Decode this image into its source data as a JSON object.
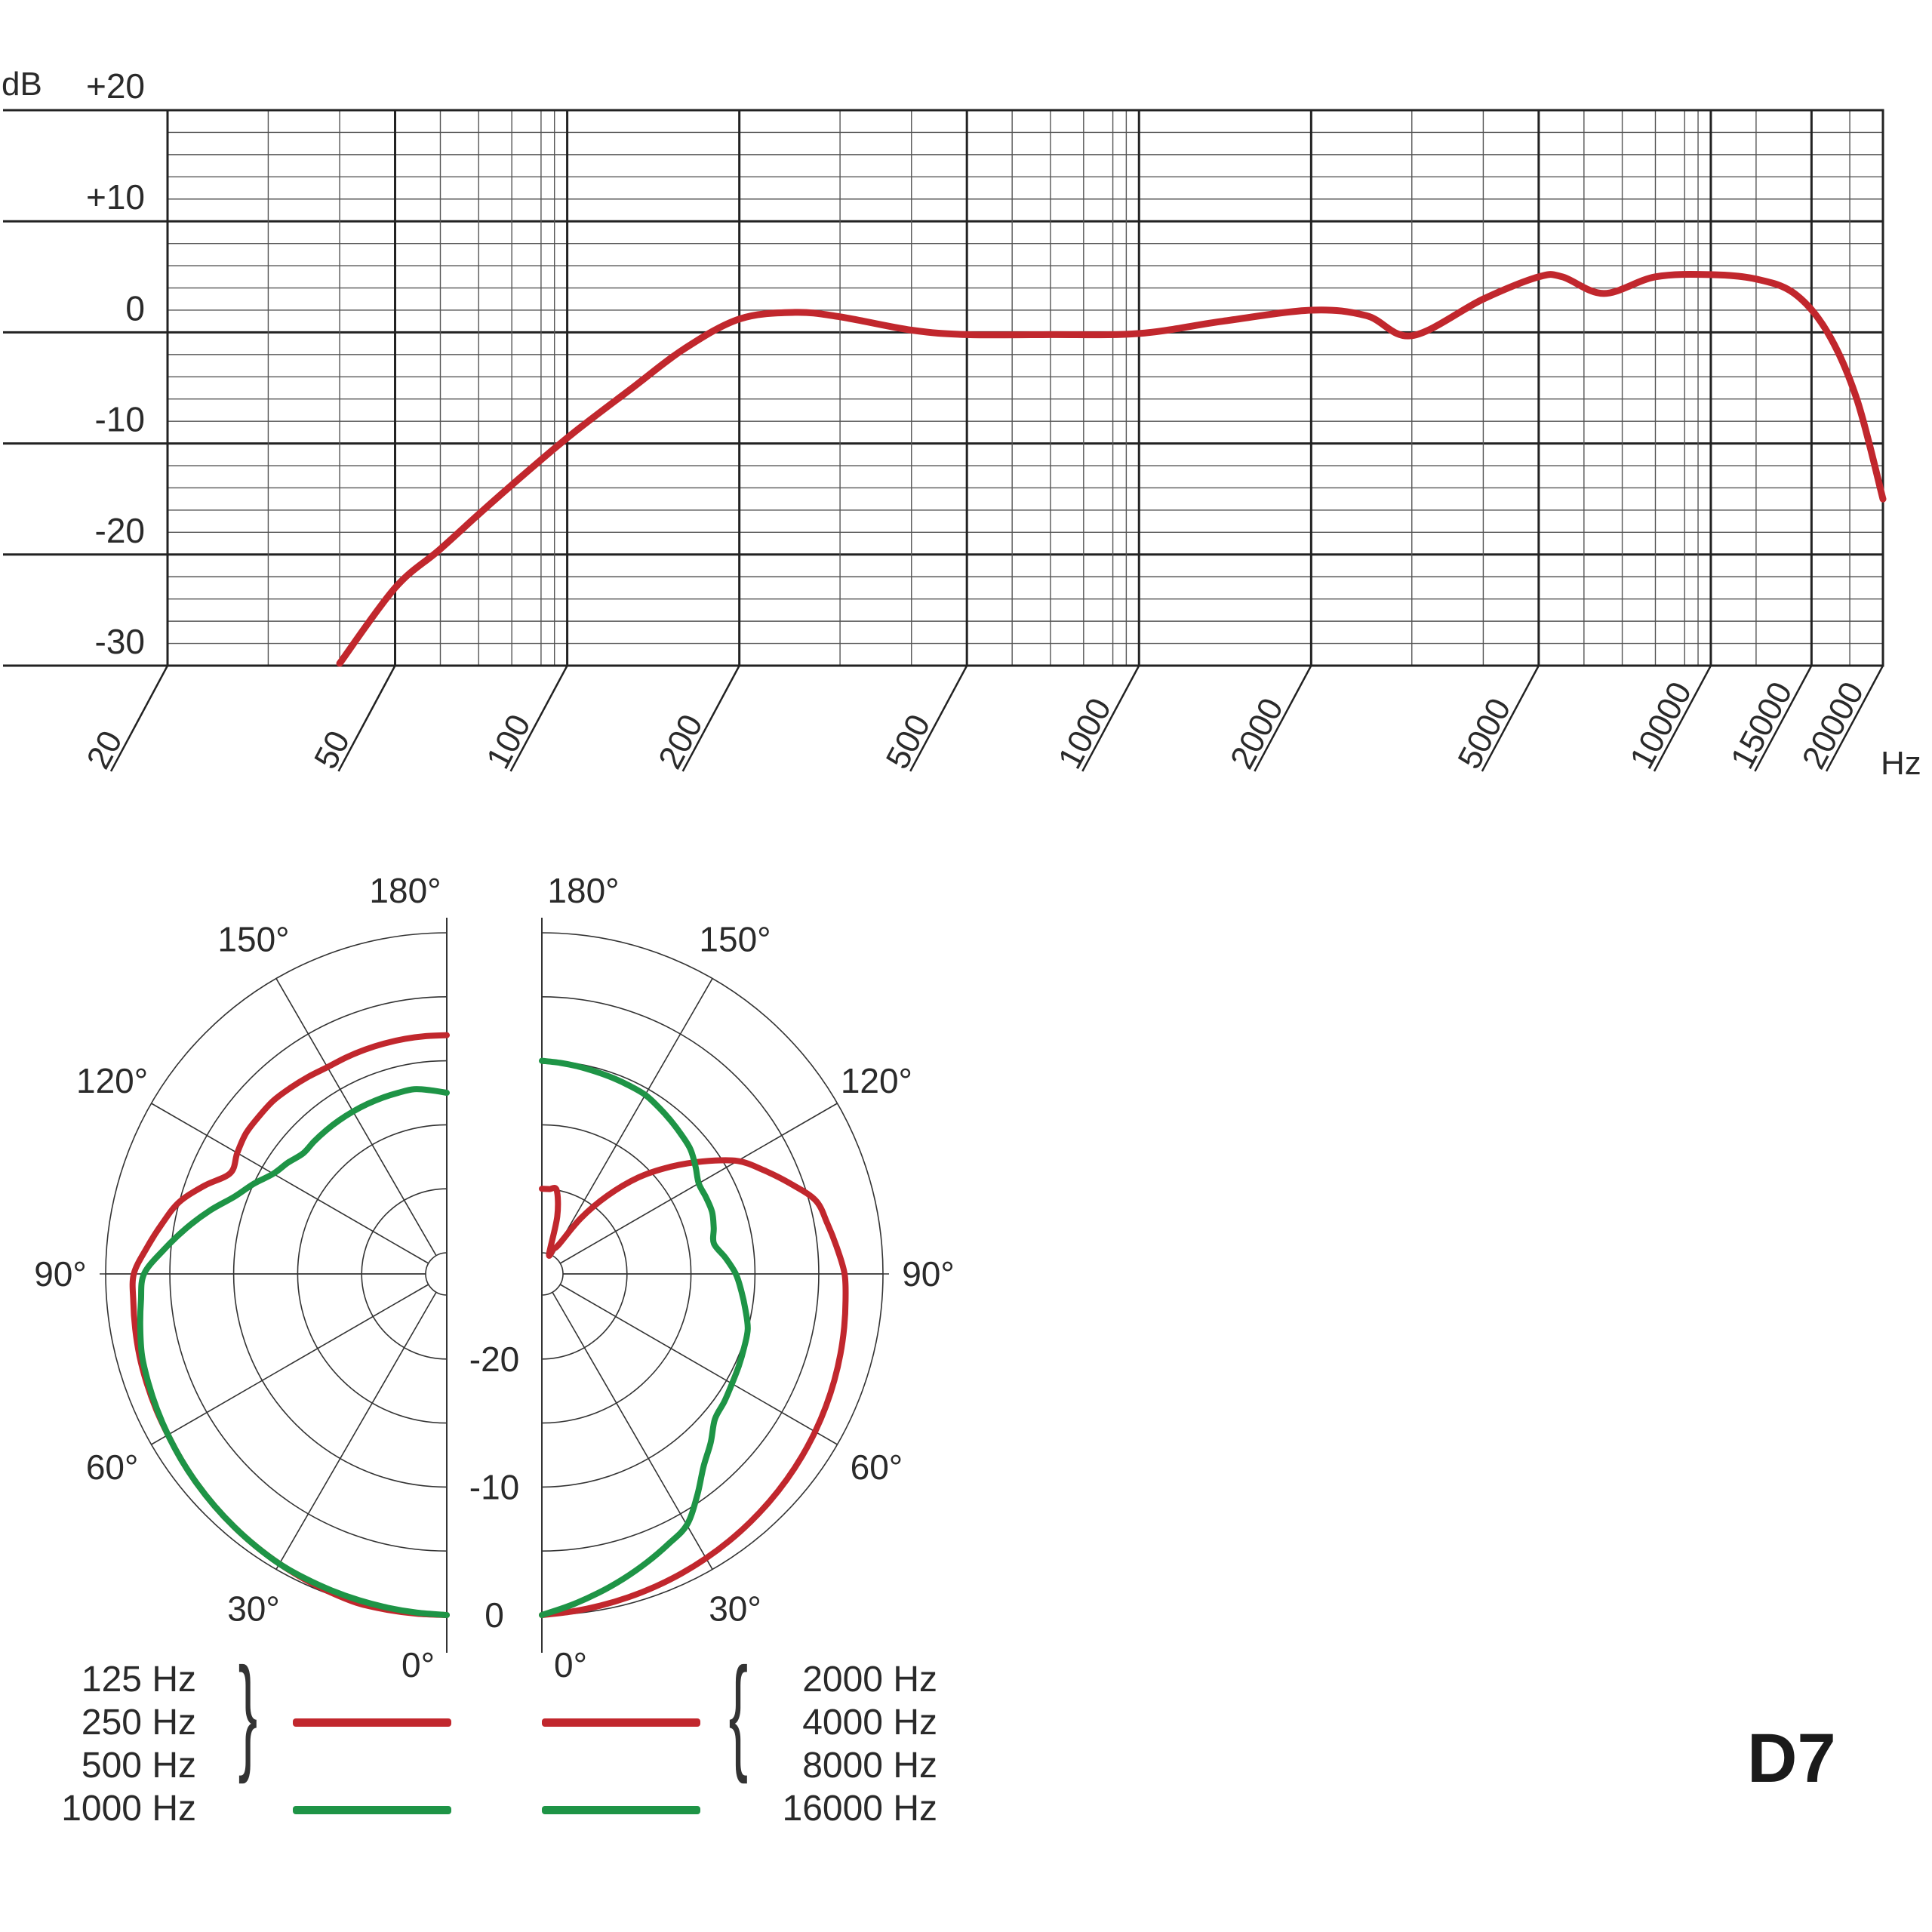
{
  "chart_data": [
    {
      "type": "line",
      "title": "",
      "xlabel": "Hz",
      "ylabel": "dB",
      "x_scale": "log",
      "xlim": [
        20,
        20000
      ],
      "ylim": [
        -30,
        20
      ],
      "grid": true,
      "x_tick_labels": [
        "20",
        "50",
        "100",
        "200",
        "500",
        "1000",
        "2000",
        "5000",
        "10000",
        "15000",
        "20000"
      ],
      "y_tick_labels": [
        "+20",
        "+10",
        "0",
        "-10",
        "-20",
        "-30"
      ],
      "series": [
        {
          "color": "#c1272d",
          "x": [
            40,
            50,
            60,
            75,
            100,
            130,
            160,
            200,
            250,
            300,
            400,
            500,
            700,
            1000,
            1400,
            2000,
            2500,
            3000,
            4000,
            5000,
            5500,
            6500,
            8000,
            10000,
            12000,
            14000,
            16000,
            18000,
            20000
          ],
          "y": [
            -29.8,
            -23,
            -19.5,
            -15,
            -9.5,
            -5,
            -1.5,
            1.2,
            1.8,
            1.4,
            0.2,
            -0.2,
            -0.2,
            -0.1,
            1,
            2,
            1.5,
            -0.3,
            3,
            5,
            5,
            3.5,
            5,
            5.2,
            4.8,
            3.5,
            0,
            -6,
            -15
          ]
        }
      ]
    },
    {
      "type": "polar",
      "angle_tick_labels": [
        "0°",
        "30°",
        "60°",
        "90°",
        "120°",
        "150°",
        "180°"
      ],
      "radial_tick_labels": [
        "0",
        "-10",
        "-20"
      ],
      "legend": {
        "left_group": {
          "red_label": [
            "125 Hz",
            "250 Hz",
            "500 Hz"
          ],
          "green_label": "1000 Hz",
          "red_color": "#c1272d",
          "green_color": "#1e9446"
        },
        "right_group": {
          "red_label": [
            "2000 Hz",
            "4000 Hz",
            "8000 Hz"
          ],
          "green_label": "16000 Hz",
          "red_color": "#c1272d",
          "green_color": "#1e9446"
        }
      },
      "series": [
        {
          "side": "left",
          "color": "#c1272d",
          "angles_deg": [
            0,
            15,
            30,
            45,
            60,
            75,
            90,
            105,
            115,
            125,
            135,
            150,
            165,
            180
          ],
          "levels_db": [
            0,
            0,
            -0.5,
            -1,
            -1.5,
            -1.8,
            -2.2,
            -5,
            -8,
            -7.5,
            -7.5,
            -8,
            -8,
            -8
          ]
        },
        {
          "side": "left",
          "color": "#1e9446",
          "angles_deg": [
            0,
            30,
            60,
            75,
            90,
            100,
            110,
            120,
            130,
            140,
            155,
            170,
            180
          ],
          "levels_db": [
            0,
            -0.5,
            -1.5,
            -2,
            -3,
            -6,
            -9,
            -11,
            -12,
            -12,
            -12,
            -12,
            -12.5
          ]
        },
        {
          "side": "right",
          "color": "#c1272d",
          "angles_deg": [
            0,
            15,
            30,
            45,
            60,
            75,
            90,
            105,
            120,
            135,
            150,
            160,
            165,
            170,
            175,
            180
          ],
          "levels_db": [
            0,
            -0.5,
            -1,
            -1.5,
            -2,
            -2.5,
            -3,
            -4.5,
            -9,
            -16,
            -24,
            -25,
            -22,
            -20,
            -20,
            -20
          ]
        },
        {
          "side": "right",
          "color": "#1e9446",
          "angles_deg": [
            0,
            15,
            30,
            40,
            50,
            60,
            75,
            90,
            100,
            110,
            120,
            130,
            140,
            150,
            165,
            180
          ],
          "levels_db": [
            0,
            -2,
            -4,
            -7,
            -9,
            -9.5,
            -10,
            -11.5,
            -13,
            -12.5,
            -12.5,
            -11.5,
            -11,
            -10.5,
            -10.3,
            -10
          ]
        }
      ]
    }
  ],
  "legend_text": {
    "left": [
      "125 Hz",
      "250 Hz",
      "500 Hz",
      "1000 Hz"
    ],
    "right": [
      "2000 Hz",
      "4000 Hz",
      "8000 Hz",
      "16000 Hz"
    ]
  },
  "model": "D7"
}
